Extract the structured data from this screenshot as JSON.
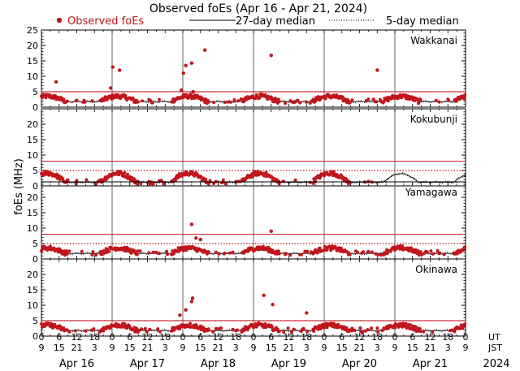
{
  "chart_data": {
    "type": "scatter",
    "title": "Observed foEs (Apr 16 - Apr 21, 2024)",
    "ylabel": "foEs (MHz)",
    "ylim": [
      0,
      25
    ],
    "yticks": [
      0,
      5,
      10,
      15,
      20,
      25
    ],
    "yticks_lower": [
      0,
      5,
      10,
      15,
      20
    ],
    "xlim_hours": [
      0,
      144
    ],
    "legend": {
      "observed": "Observed foEs",
      "median27": "27-day median",
      "median5": "5-day median",
      "placement": "top"
    },
    "x_axis": {
      "ut_label": "UT",
      "jst_label": "JST",
      "ut_ticks": [
        "0",
        "6",
        "12",
        "18",
        "0",
        "6",
        "12",
        "18",
        "0",
        "6",
        "12",
        "18",
        "0",
        "6",
        "12",
        "18",
        "0",
        "6",
        "12",
        "18",
        "0",
        "6",
        "12",
        "18",
        "0"
      ],
      "jst_ticks": [
        "9",
        "15",
        "21",
        "3",
        "9",
        "15",
        "21",
        "3",
        "9",
        "15",
        "21",
        "3",
        "9",
        "15",
        "21",
        "3",
        "9",
        "15",
        "21",
        "3",
        "9",
        "15",
        "21",
        "3",
        "9"
      ],
      "days": [
        "Apr 16",
        "Apr 17",
        "Apr 18",
        "Apr 19",
        "Apr 20",
        "Apr 21"
      ],
      "year": "2024"
    },
    "colors": {
      "observed": "#c0161c",
      "threshold": "#c0161c",
      "median": "#000000",
      "day_divider": "#666666"
    },
    "panels": [
      {
        "station": "Wakkanai",
        "ymax_label": "25",
        "threshold_mhz": 5,
        "spikes": [
          {
            "hour": 5,
            "mhz": 8.2
          },
          {
            "hour": 23.5,
            "mhz": 6.2
          },
          {
            "hour": 24.2,
            "mhz": 13.0
          },
          {
            "hour": 26.5,
            "mhz": 12.0
          },
          {
            "hour": 47.5,
            "mhz": 5.5
          },
          {
            "hour": 48.2,
            "mhz": 11.0
          },
          {
            "hour": 49,
            "mhz": 13.5
          },
          {
            "hour": 51,
            "mhz": 14.3
          },
          {
            "hour": 51.5,
            "mhz": 5.0
          },
          {
            "hour": 55.5,
            "mhz": 18.5
          },
          {
            "hour": 78,
            "mhz": 16.8
          },
          {
            "hour": 114,
            "mhz": 12.0
          }
        ]
      },
      {
        "station": "Kokubunji",
        "ymax_label": "",
        "threshold_mhz": 8,
        "spikes": []
      },
      {
        "station": "Yamagawa",
        "ymax_label": "",
        "threshold_mhz": 8,
        "spikes": [
          {
            "hour": 51,
            "mhz": 11.2
          },
          {
            "hour": 52.5,
            "mhz": 6.8
          },
          {
            "hour": 54,
            "mhz": 6.3
          },
          {
            "hour": 78,
            "mhz": 9.0
          }
        ]
      },
      {
        "station": "Okinawa",
        "ymax_label": "",
        "threshold_mhz": 5,
        "spikes": [
          {
            "hour": 47,
            "mhz": 6.8
          },
          {
            "hour": 49,
            "mhz": 8.5
          },
          {
            "hour": 51,
            "mhz": 11.2
          },
          {
            "hour": 51.3,
            "mhz": 12.3
          },
          {
            "hour": 75.5,
            "mhz": 13.2
          },
          {
            "hour": 78.5,
            "mhz": 10.2
          },
          {
            "hour": 90,
            "mhz": 7.5
          }
        ]
      }
    ]
  }
}
